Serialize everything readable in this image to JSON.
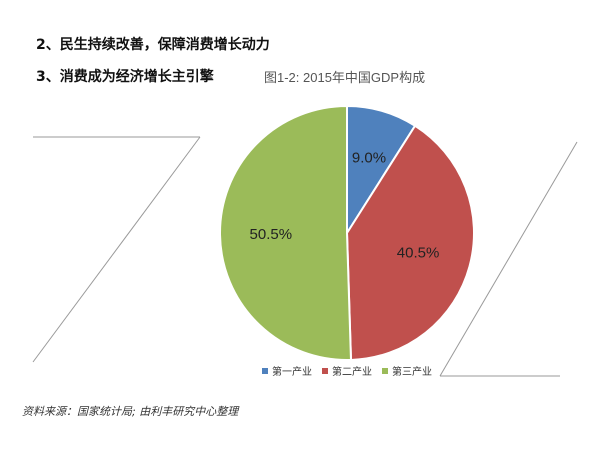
{
  "headings": {
    "line1": "2、民生持续改善，保障消费增长动力",
    "line2": "3、消费成为经济增长主引擎"
  },
  "chart_data": {
    "type": "pie",
    "title": "图1-2: 2015年中国GDP构成",
    "categories": [
      "第一产业",
      "第二产业",
      "第三产业"
    ],
    "values": [
      9.0,
      40.5,
      50.5
    ],
    "data_labels": [
      "9.0%",
      "40.5%",
      "50.5%"
    ],
    "colors": [
      "#4f81bd",
      "#c0504d",
      "#9bbb59"
    ],
    "legend_position": "bottom-right"
  },
  "source": "资料来源：国家统计局; 由利丰研究中心整理"
}
